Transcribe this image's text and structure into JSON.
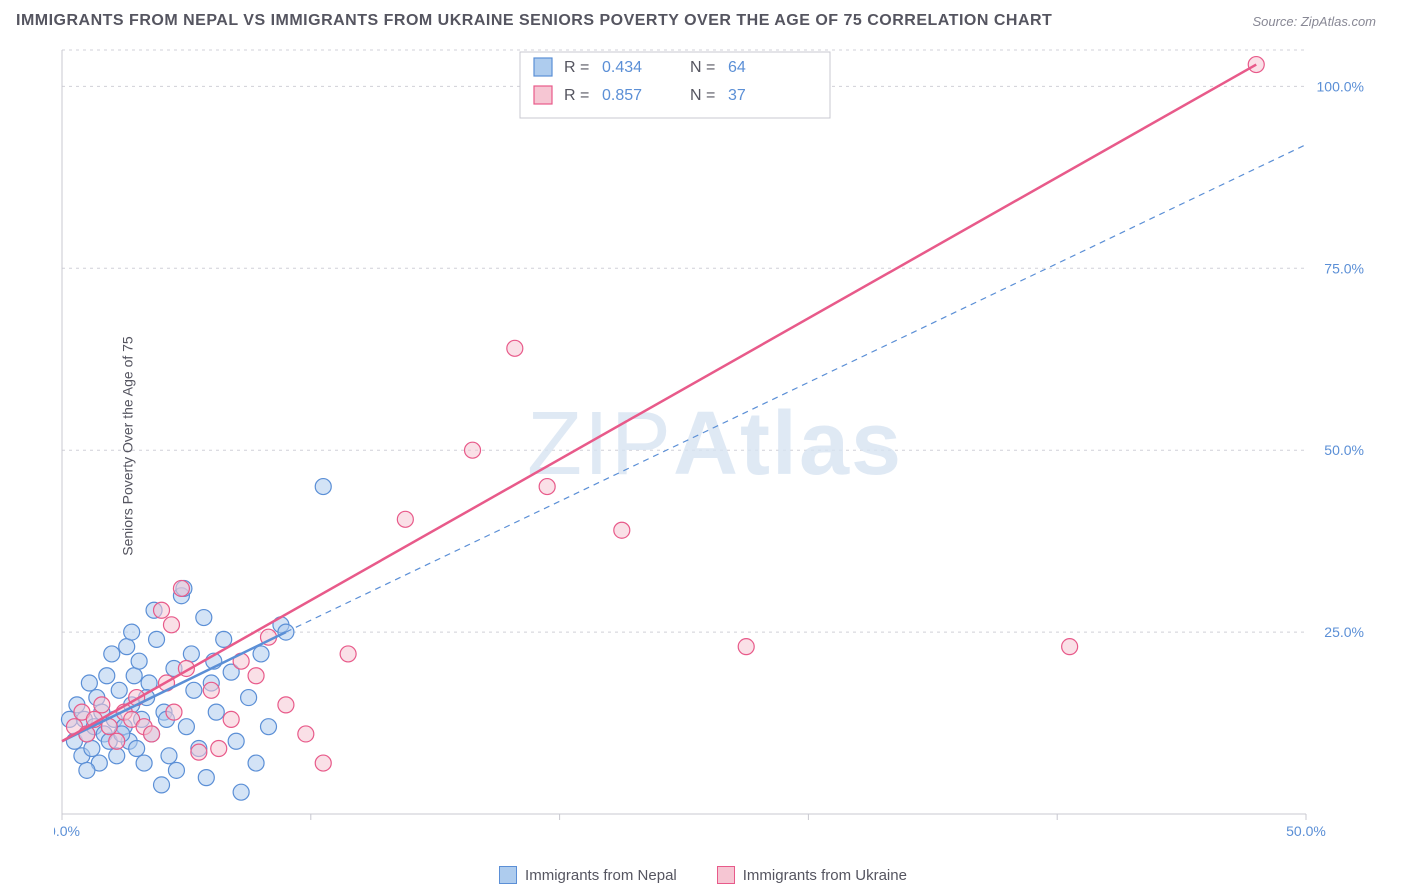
{
  "title": "IMMIGRANTS FROM NEPAL VS IMMIGRANTS FROM UKRAINE SENIORS POVERTY OVER THE AGE OF 75 CORRELATION CHART",
  "source": "Source: ZipAtlas.com",
  "ylabel": "Seniors Poverty Over the Age of 75",
  "watermark": {
    "light": "ZIP",
    "bold": "Atlas"
  },
  "chart": {
    "type": "scatter",
    "xlim": [
      0,
      50
    ],
    "ylim": [
      0,
      105
    ],
    "xticks": [
      0,
      10,
      20,
      30,
      40,
      50
    ],
    "yticks": [
      25,
      50,
      75,
      100
    ],
    "xtick_labels": [
      "0.0%",
      "",
      "",
      "",
      "",
      "50.0%"
    ],
    "ytick_labels": [
      "25.0%",
      "50.0%",
      "75.0%",
      "100.0%"
    ],
    "background_color": "#ffffff",
    "grid_color": "#d0d0d8",
    "axis_color": "#c8c8d0",
    "label_color": "#5b8fd6",
    "marker_radius": 8,
    "marker_opacity": 0.55,
    "series": [
      {
        "name": "Immigrants from Nepal",
        "fill": "#aeccee",
        "stroke": "#5b8fd6",
        "R": "0.434",
        "N": "64",
        "trend": {
          "x1": 0,
          "y1": 10,
          "x2": 9,
          "y2": 25,
          "dash": false,
          "width": 2.5
        },
        "trend_ext": {
          "x1": 9,
          "y1": 25,
          "x2": 50,
          "y2": 92,
          "dash": true,
          "width": 1.2
        },
        "points": [
          [
            0.3,
            13
          ],
          [
            0.5,
            10
          ],
          [
            0.6,
            15
          ],
          [
            0.8,
            8
          ],
          [
            0.9,
            13
          ],
          [
            1.0,
            11
          ],
          [
            1.1,
            18
          ],
          [
            1.2,
            9
          ],
          [
            1.3,
            12
          ],
          [
            1.4,
            16
          ],
          [
            1.5,
            7
          ],
          [
            1.6,
            14
          ],
          [
            1.7,
            11
          ],
          [
            1.8,
            19
          ],
          [
            1.9,
            10
          ],
          [
            2.0,
            22
          ],
          [
            2.1,
            13
          ],
          [
            2.2,
            8
          ],
          [
            2.3,
            17
          ],
          [
            2.5,
            12
          ],
          [
            2.6,
            23
          ],
          [
            2.7,
            10
          ],
          [
            2.8,
            15
          ],
          [
            2.9,
            19
          ],
          [
            3.0,
            9
          ],
          [
            3.1,
            21
          ],
          [
            3.2,
            13
          ],
          [
            3.3,
            7
          ],
          [
            3.5,
            18
          ],
          [
            3.6,
            11
          ],
          [
            3.8,
            24
          ],
          [
            4.0,
            4
          ],
          [
            4.1,
            14
          ],
          [
            4.3,
            8
          ],
          [
            4.5,
            20
          ],
          [
            4.6,
            6
          ],
          [
            4.8,
            30
          ],
          [
            5.0,
            12
          ],
          [
            5.2,
            22
          ],
          [
            5.5,
            9
          ],
          [
            5.7,
            27
          ],
          [
            5.8,
            5
          ],
          [
            6.0,
            18
          ],
          [
            6.2,
            14
          ],
          [
            6.5,
            24
          ],
          [
            6.8,
            19.5
          ],
          [
            7.0,
            10
          ],
          [
            7.2,
            3
          ],
          [
            7.5,
            16
          ],
          [
            7.8,
            7
          ],
          [
            8.0,
            22
          ],
          [
            8.3,
            12
          ],
          [
            8.8,
            26
          ],
          [
            9.0,
            25
          ],
          [
            2.4,
            11
          ],
          [
            3.4,
            16
          ],
          [
            4.2,
            13
          ],
          [
            5.3,
            17
          ],
          [
            6.1,
            21
          ],
          [
            10.5,
            45
          ],
          [
            1.0,
            6
          ],
          [
            2.8,
            25
          ],
          [
            3.7,
            28
          ],
          [
            4.9,
            31
          ]
        ]
      },
      {
        "name": "Immigrants from Ukraine",
        "fill": "#f6c6d3",
        "stroke": "#e85a8a",
        "R": "0.857",
        "N": "37",
        "trend": {
          "x1": 0,
          "y1": 10,
          "x2": 48,
          "y2": 103,
          "dash": false,
          "width": 2.5
        },
        "points": [
          [
            0.5,
            12
          ],
          [
            0.8,
            14
          ],
          [
            1.0,
            11
          ],
          [
            1.3,
            13
          ],
          [
            1.6,
            15
          ],
          [
            1.9,
            12
          ],
          [
            2.2,
            10
          ],
          [
            2.5,
            14
          ],
          [
            2.8,
            13
          ],
          [
            3.0,
            16
          ],
          [
            3.3,
            12
          ],
          [
            3.6,
            11
          ],
          [
            4.0,
            28
          ],
          [
            4.2,
            18
          ],
          [
            4.5,
            14
          ],
          [
            4.8,
            31
          ],
          [
            5.0,
            20
          ],
          [
            5.5,
            8.5
          ],
          [
            6.0,
            17
          ],
          [
            6.3,
            9
          ],
          [
            6.8,
            13
          ],
          [
            7.2,
            21
          ],
          [
            7.8,
            19
          ],
          [
            8.3,
            24.3
          ],
          [
            9.0,
            15
          ],
          [
            9.8,
            11
          ],
          [
            10.5,
            7
          ],
          [
            11.5,
            22
          ],
          [
            13.8,
            40.5
          ],
          [
            16.5,
            50
          ],
          [
            18.2,
            64
          ],
          [
            19.5,
            45
          ],
          [
            22.5,
            39
          ],
          [
            27.5,
            23
          ],
          [
            40.5,
            23
          ],
          [
            48,
            103
          ],
          [
            4.4,
            26
          ]
        ]
      }
    ]
  },
  "stat_legend": {
    "R_label": "R =",
    "N_label": "N ="
  },
  "legend_bottom": [
    {
      "label": "Immigrants from Nepal",
      "fill": "#aeccee",
      "stroke": "#5b8fd6"
    },
    {
      "label": "Immigrants from Ukraine",
      "fill": "#f6c6d3",
      "stroke": "#e85a8a"
    }
  ]
}
